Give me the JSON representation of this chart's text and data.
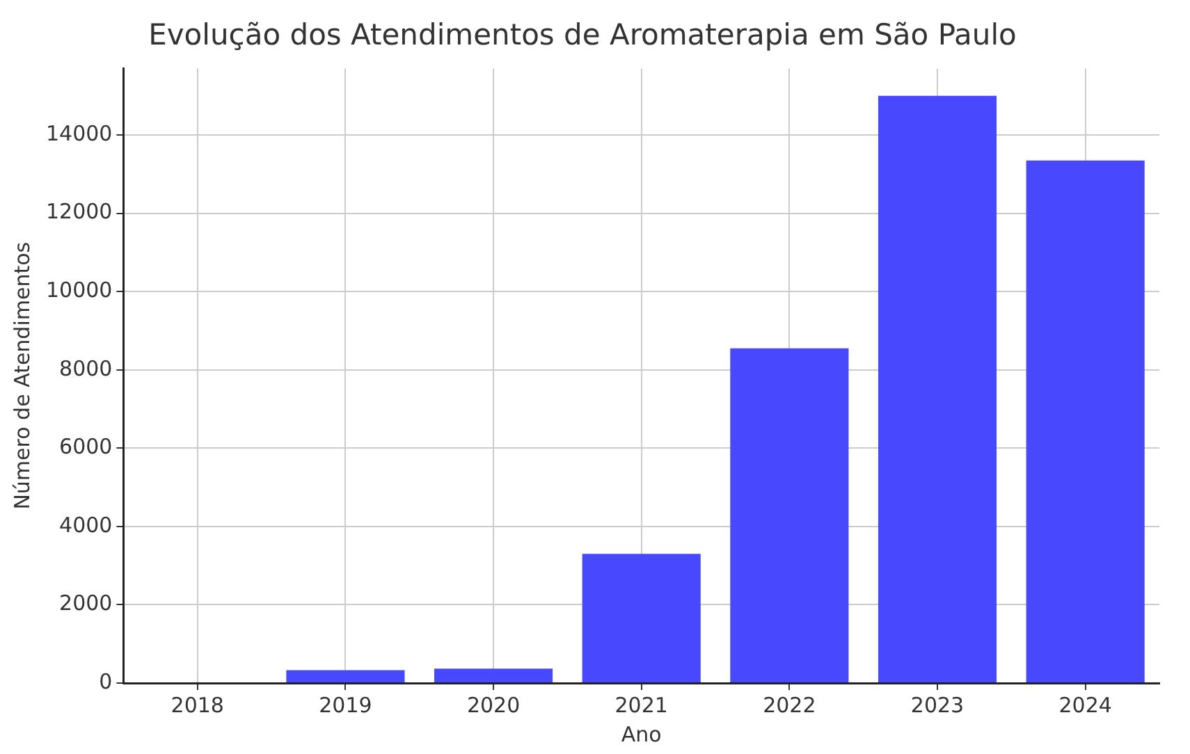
{
  "chart_data": {
    "type": "bar",
    "title": "Evolução dos Atendimentos de Aromaterapia em São Paulo",
    "xlabel": "Ano",
    "ylabel": "Número de Atendimentos",
    "categories": [
      "2018",
      "2019",
      "2020",
      "2021",
      "2022",
      "2023",
      "2024"
    ],
    "values": [
      0,
      330,
      370,
      3300,
      8550,
      15000,
      13350
    ],
    "color": "#4848ff",
    "ylim": [
      0,
      15700
    ],
    "yticks": [
      0,
      2000,
      4000,
      6000,
      8000,
      10000,
      12000,
      14000
    ],
    "grid": true
  }
}
